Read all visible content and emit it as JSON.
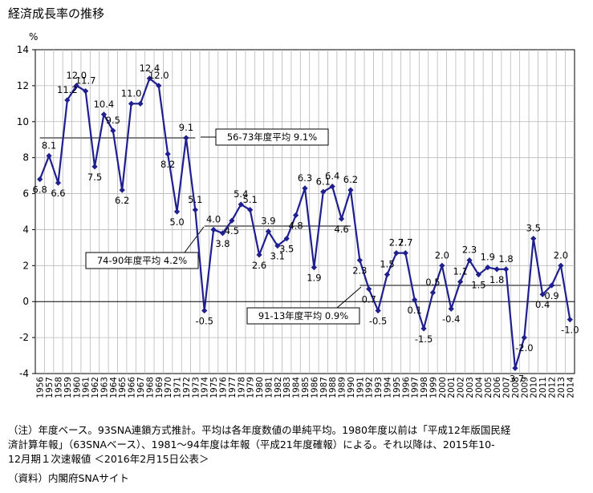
{
  "chart_data": {
    "type": "line",
    "title": "経済成長率の推移",
    "ylabel": "%",
    "xlabel": "",
    "ylim": [
      -4,
      14
    ],
    "yticks": [
      -4,
      -2,
      0,
      2,
      4,
      6,
      8,
      10,
      12,
      14
    ],
    "grid": true,
    "x": [
      1956,
      1957,
      1958,
      1959,
      1960,
      1961,
      1962,
      1963,
      1964,
      1965,
      1966,
      1967,
      1968,
      1969,
      1970,
      1971,
      1972,
      1973,
      1974,
      1975,
      1976,
      1977,
      1978,
      1979,
      1980,
      1981,
      1982,
      1983,
      1984,
      1985,
      1986,
      1987,
      1988,
      1989,
      1990,
      1991,
      1992,
      1993,
      1994,
      1995,
      1996,
      1997,
      1998,
      1999,
      2000,
      2001,
      2002,
      2003,
      2004,
      2005,
      2006,
      2007,
      2008,
      2009,
      2010,
      2011,
      2012,
      2013,
      2014
    ],
    "values": [
      6.8,
      8.1,
      6.6,
      11.2,
      12.0,
      11.7,
      7.5,
      10.4,
      9.5,
      6.2,
      11.0,
      11.0,
      12.4,
      12.0,
      8.2,
      5.0,
      9.1,
      5.1,
      -0.5,
      4.0,
      3.8,
      4.5,
      5.4,
      5.1,
      2.6,
      3.9,
      3.1,
      3.5,
      4.8,
      6.3,
      1.9,
      6.1,
      6.4,
      4.6,
      6.2,
      2.3,
      0.7,
      -0.5,
      1.5,
      2.7,
      2.7,
      0.1,
      -1.5,
      0.5,
      2.0,
      -0.4,
      1.1,
      2.3,
      1.5,
      1.9,
      1.8,
      1.8,
      -3.7,
      -2.0,
      3.5,
      0.4,
      0.9,
      2.0,
      -1.0
    ],
    "value_labels": [
      "6.8",
      "8.1",
      "6.6",
      "11.2",
      "12.0",
      "11.7",
      "7.5",
      "10.4",
      "9.5",
      "6.2",
      "11.0",
      "",
      "12.4",
      "12.0",
      "8.2",
      "5.0",
      "9.1",
      "5.1",
      "-0.5",
      "4.0",
      "3.8",
      "4.5",
      "5.4",
      "5.1",
      "2.6",
      "3.9",
      "3.1",
      "3.5",
      "4.8",
      "6.3",
      "1.9",
      "6.1",
      "6.4",
      "4.6",
      "6.2",
      "2.3",
      "0.7",
      "-0.5",
      "1.5",
      "2.7",
      "2.7",
      "0.1",
      "-1.5",
      "0.5",
      "2.0",
      "-0.4",
      "1.1",
      "2.3",
      "1.5",
      "1.9",
      "1.8",
      "1.8",
      "-3.7",
      "-2.0",
      "3.5",
      "0.4",
      "0.9",
      "2.0",
      "-1.0"
    ],
    "averages": [
      {
        "label": "56-73年度平均 9.1%",
        "value": 9.1,
        "from": 1956,
        "to": 1973
      },
      {
        "label": "74-90年度平均 4.2%",
        "value": 4.2,
        "from": 1974,
        "to": 1990
      },
      {
        "label": "91-13年度平均 0.9%",
        "value": 0.9,
        "from": 1991,
        "to": 2013
      }
    ],
    "colors": {
      "series": "#1f1f8f",
      "average": "#808080",
      "grid": "#b8b8b8",
      "axis": "#000000"
    }
  },
  "notes": {
    "line1": "（注）年度ベース。93SNA連鎖方式推計。平均は各年度数値の単純平均。1980年度以前は「平成12年版国民経",
    "line2": "済計算年報」（63SNAベース）、1981～94年度は年報（平成21年度確報）による。それ以降は、2015年10-",
    "line3": "12月期１次速報値 ＜2016年2月15日公表＞",
    "source": "（資料）内閣府SNAサイト"
  }
}
